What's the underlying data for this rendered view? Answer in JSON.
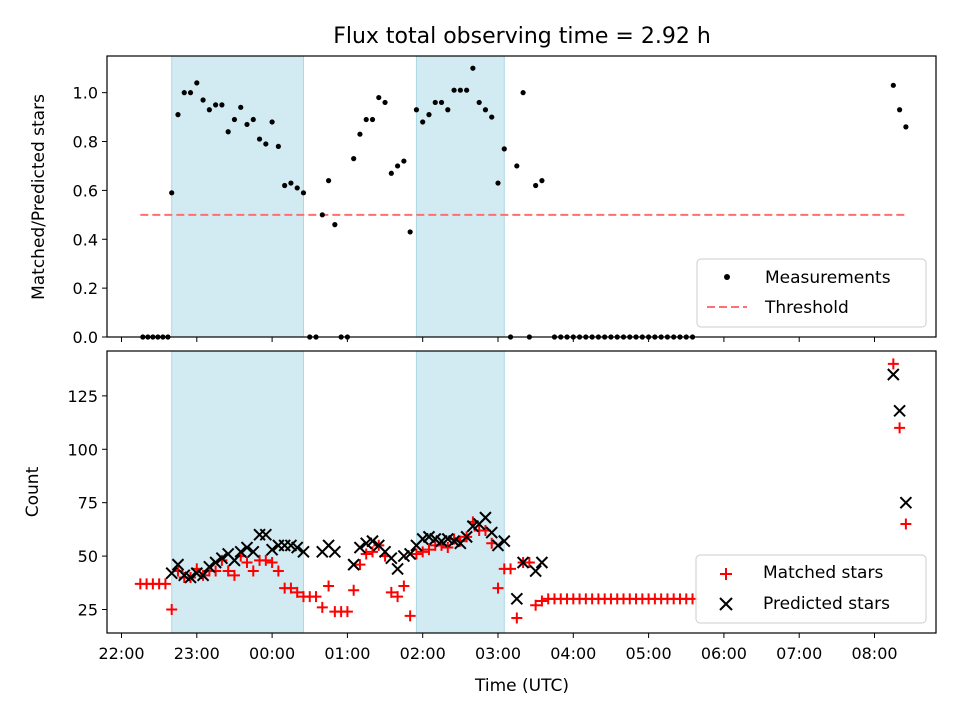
{
  "figure": {
    "title": "Flux total observing time = 2.92 h",
    "xlabel": "Time (UTC)",
    "x_ticks": [
      "22:00",
      "23:00",
      "00:00",
      "01:00",
      "02:00",
      "03:00",
      "04:00",
      "05:00",
      "06:00",
      "07:00",
      "08:00"
    ]
  },
  "colors": {
    "shade": "#add8e6",
    "measurement": "#000000",
    "threshold": "#ff6f6f",
    "matched": "#ff0000",
    "predicted": "#000000"
  },
  "chart_data": [
    {
      "type": "scatter",
      "panel": "top",
      "ylabel": "Matched/Predicted stars",
      "ylim": [
        0,
        1.15
      ],
      "y_ticks": [
        "0.0",
        "0.2",
        "0.4",
        "0.6",
        "0.8",
        "1.0"
      ],
      "legend_position": "lower-right",
      "legend": {
        "measurements": "Measurements",
        "threshold": "Threshold"
      },
      "shaded_intervals": [
        [
          "22:40",
          "00:25"
        ],
        [
          "01:55",
          "03:05"
        ]
      ],
      "threshold": {
        "value": 0.5,
        "x_range": [
          "22:15",
          "08:25"
        ]
      },
      "series": [
        {
          "name": "Measurements",
          "points": [
            [
              "22:17",
              0
            ],
            [
              "22:21",
              0
            ],
            [
              "22:25",
              0
            ],
            [
              "22:29",
              0
            ],
            [
              "22:33",
              0
            ],
            [
              "22:37",
              0
            ],
            [
              "22:40",
              0.59
            ],
            [
              "22:45",
              0.91
            ],
            [
              "22:50",
              1.0
            ],
            [
              "22:55",
              1.0
            ],
            [
              "23:00",
              1.04
            ],
            [
              "23:05",
              0.97
            ],
            [
              "23:10",
              0.93
            ],
            [
              "23:15",
              0.95
            ],
            [
              "23:20",
              0.95
            ],
            [
              "23:25",
              0.84
            ],
            [
              "23:30",
              0.89
            ],
            [
              "23:35",
              0.94
            ],
            [
              "23:40",
              0.87
            ],
            [
              "23:45",
              0.89
            ],
            [
              "23:50",
              0.81
            ],
            [
              "23:55",
              0.79
            ],
            [
              "00:00",
              0.88
            ],
            [
              "00:05",
              0.78
            ],
            [
              "00:10",
              0.62
            ],
            [
              "00:15",
              0.63
            ],
            [
              "00:20",
              0.61
            ],
            [
              "00:25",
              0.59
            ],
            [
              "00:30",
              0
            ],
            [
              "00:35",
              0
            ],
            [
              "00:40",
              0.5
            ],
            [
              "00:45",
              0.64
            ],
            [
              "00:50",
              0.46
            ],
            [
              "00:55",
              0
            ],
            [
              "01:00",
              0
            ],
            [
              "01:05",
              0.73
            ],
            [
              "01:10",
              0.83
            ],
            [
              "01:15",
              0.89
            ],
            [
              "01:20",
              0.89
            ],
            [
              "01:25",
              0.98
            ],
            [
              "01:30",
              0.96
            ],
            [
              "01:35",
              0.67
            ],
            [
              "01:40",
              0.7
            ],
            [
              "01:45",
              0.72
            ],
            [
              "01:50",
              0.43
            ],
            [
              "01:55",
              0.93
            ],
            [
              "02:00",
              0.88
            ],
            [
              "02:05",
              0.91
            ],
            [
              "02:10",
              0.96
            ],
            [
              "02:15",
              0.96
            ],
            [
              "02:20",
              0.93
            ],
            [
              "02:25",
              1.01
            ],
            [
              "02:30",
              1.01
            ],
            [
              "02:35",
              1.01
            ],
            [
              "02:40",
              1.1
            ],
            [
              "02:45",
              0.96
            ],
            [
              "02:50",
              0.93
            ],
            [
              "02:55",
              0.9
            ],
            [
              "03:00",
              0.63
            ],
            [
              "03:05",
              0.77
            ],
            [
              "03:10",
              0
            ],
            [
              "03:15",
              0.7
            ],
            [
              "03:20",
              1.0
            ],
            [
              "03:25",
              0
            ],
            [
              "03:30",
              0.62
            ],
            [
              "03:35",
              0.64
            ],
            [
              "03:45",
              0
            ],
            [
              "03:50",
              0
            ],
            [
              "03:55",
              0
            ],
            [
              "04:00",
              0
            ],
            [
              "04:05",
              0
            ],
            [
              "04:10",
              0
            ],
            [
              "04:15",
              0
            ],
            [
              "04:20",
              0
            ],
            [
              "04:25",
              0
            ],
            [
              "04:30",
              0
            ],
            [
              "04:35",
              0
            ],
            [
              "04:40",
              0
            ],
            [
              "04:45",
              0
            ],
            [
              "04:50",
              0
            ],
            [
              "04:55",
              0
            ],
            [
              "05:00",
              0
            ],
            [
              "05:05",
              0
            ],
            [
              "05:10",
              0
            ],
            [
              "05:15",
              0
            ],
            [
              "05:20",
              0
            ],
            [
              "05:25",
              0
            ],
            [
              "05:30",
              0
            ],
            [
              "05:35",
              0
            ],
            [
              "08:15",
              1.03
            ],
            [
              "08:20",
              0.93
            ],
            [
              "08:25",
              0.86
            ]
          ]
        }
      ]
    },
    {
      "type": "scatter",
      "panel": "bottom",
      "ylabel": "Count",
      "ylim": [
        14,
        146
      ],
      "y_ticks": [
        "25",
        "50",
        "75",
        "100",
        "125"
      ],
      "legend_position": "lower-right",
      "legend": {
        "matched": "Matched stars",
        "predicted": "Predicted stars"
      },
      "shaded_intervals": [
        [
          "22:40",
          "00:25"
        ],
        [
          "01:55",
          "03:05"
        ]
      ],
      "series": [
        {
          "name": "Matched stars",
          "points": [
            [
              "22:15",
              37
            ],
            [
              "22:20",
              37
            ],
            [
              "22:25",
              37
            ],
            [
              "22:30",
              37
            ],
            [
              "22:35",
              37
            ],
            [
              "22:40",
              25
            ],
            [
              "22:45",
              43
            ],
            [
              "22:50",
              40
            ],
            [
              "22:55",
              40
            ],
            [
              "23:00",
              44
            ],
            [
              "23:05",
              41
            ],
            [
              "23:10",
              43
            ],
            [
              "23:15",
              43
            ],
            [
              "23:20",
              48
            ],
            [
              "23:25",
              43
            ],
            [
              "23:30",
              41
            ],
            [
              "23:35",
              50
            ],
            [
              "23:40",
              47
            ],
            [
              "23:45",
              43
            ],
            [
              "23:50",
              48
            ],
            [
              "23:55",
              48
            ],
            [
              "00:00",
              47
            ],
            [
              "00:05",
              43
            ],
            [
              "00:10",
              35
            ],
            [
              "00:15",
              35
            ],
            [
              "00:20",
              33
            ],
            [
              "00:25",
              31
            ],
            [
              "00:30",
              31
            ],
            [
              "00:35",
              31
            ],
            [
              "00:40",
              26
            ],
            [
              "00:45",
              36
            ],
            [
              "00:50",
              24
            ],
            [
              "00:55",
              24
            ],
            [
              "01:00",
              24
            ],
            [
              "01:05",
              34
            ],
            [
              "01:10",
              46
            ],
            [
              "01:15",
              51
            ],
            [
              "01:20",
              52
            ],
            [
              "01:25",
              55
            ],
            [
              "01:30",
              50
            ],
            [
              "01:35",
              33
            ],
            [
              "01:40",
              31
            ],
            [
              "01:45",
              36
            ],
            [
              "01:50",
              22
            ],
            [
              "01:55",
              51
            ],
            [
              "02:00",
              52
            ],
            [
              "02:05",
              53
            ],
            [
              "02:10",
              55
            ],
            [
              "02:15",
              55
            ],
            [
              "02:20",
              54
            ],
            [
              "02:25",
              58
            ],
            [
              "02:30",
              57
            ],
            [
              "02:35",
              59
            ],
            [
              "02:40",
              66
            ],
            [
              "02:45",
              62
            ],
            [
              "02:50",
              62
            ],
            [
              "02:55",
              56
            ],
            [
              "03:00",
              35
            ],
            [
              "03:05",
              44
            ],
            [
              "03:10",
              44
            ],
            [
              "03:15",
              21
            ],
            [
              "03:20",
              47
            ],
            [
              "03:25",
              47
            ],
            [
              "03:30",
              27
            ],
            [
              "03:35",
              29
            ],
            [
              "03:40",
              30
            ],
            [
              "03:45",
              30
            ],
            [
              "03:50",
              30
            ],
            [
              "03:55",
              30
            ],
            [
              "04:00",
              30
            ],
            [
              "04:05",
              30
            ],
            [
              "04:10",
              30
            ],
            [
              "04:15",
              30
            ],
            [
              "04:20",
              30
            ],
            [
              "04:25",
              30
            ],
            [
              "04:30",
              30
            ],
            [
              "04:35",
              30
            ],
            [
              "04:40",
              30
            ],
            [
              "04:45",
              30
            ],
            [
              "04:50",
              30
            ],
            [
              "04:55",
              30
            ],
            [
              "05:00",
              30
            ],
            [
              "05:05",
              30
            ],
            [
              "05:10",
              30
            ],
            [
              "05:15",
              30
            ],
            [
              "05:20",
              30
            ],
            [
              "05:25",
              30
            ],
            [
              "05:30",
              30
            ],
            [
              "05:35",
              30
            ],
            [
              "08:15",
              140
            ],
            [
              "08:20",
              110
            ],
            [
              "08:25",
              65
            ]
          ]
        },
        {
          "name": "Predicted stars",
          "points": [
            [
              "22:40",
              42
            ],
            [
              "22:45",
              46
            ],
            [
              "22:50",
              41
            ],
            [
              "22:55",
              40
            ],
            [
              "23:00",
              42
            ],
            [
              "23:05",
              41
            ],
            [
              "23:10",
              45
            ],
            [
              "23:15",
              47
            ],
            [
              "23:20",
              49
            ],
            [
              "23:25",
              51
            ],
            [
              "23:30",
              48
            ],
            [
              "23:35",
              52
            ],
            [
              "23:40",
              54
            ],
            [
              "23:45",
              52
            ],
            [
              "23:50",
              60
            ],
            [
              "23:55",
              60
            ],
            [
              "00:00",
              53
            ],
            [
              "00:05",
              55
            ],
            [
              "00:10",
              55
            ],
            [
              "00:15",
              55
            ],
            [
              "00:20",
              54
            ],
            [
              "00:25",
              52
            ],
            [
              "00:40",
              52
            ],
            [
              "00:45",
              55
            ],
            [
              "00:50",
              52
            ],
            [
              "01:05",
              46
            ],
            [
              "01:10",
              54
            ],
            [
              "01:15",
              56
            ],
            [
              "01:20",
              57
            ],
            [
              "01:25",
              55
            ],
            [
              "01:30",
              52
            ],
            [
              "01:35",
              49
            ],
            [
              "01:40",
              44
            ],
            [
              "01:45",
              50
            ],
            [
              "01:50",
              51
            ],
            [
              "01:55",
              55
            ],
            [
              "02:00",
              58
            ],
            [
              "02:05",
              59
            ],
            [
              "02:10",
              58
            ],
            [
              "02:15",
              57
            ],
            [
              "02:20",
              58
            ],
            [
              "02:25",
              57
            ],
            [
              "02:30",
              56
            ],
            [
              "02:35",
              59
            ],
            [
              "02:40",
              64
            ],
            [
              "02:45",
              65
            ],
            [
              "02:50",
              68
            ],
            [
              "02:55",
              61
            ],
            [
              "03:00",
              55
            ],
            [
              "03:05",
              57
            ],
            [
              "03:15",
              30
            ],
            [
              "03:20",
              47
            ],
            [
              "03:30",
              43
            ],
            [
              "03:35",
              47
            ],
            [
              "08:15",
              135
            ],
            [
              "08:20",
              118
            ],
            [
              "08:25",
              75
            ]
          ]
        }
      ]
    }
  ]
}
